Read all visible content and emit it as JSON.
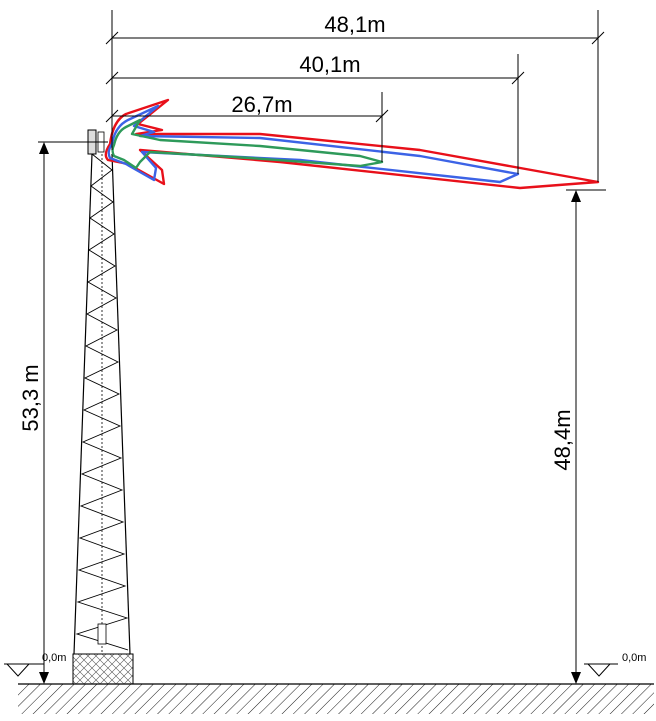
{
  "dimensions": {
    "width_red": "48,1m",
    "width_blue": "40,1m",
    "width_green": "26,7m",
    "tower_height": "53,3 m",
    "beam_end_height": "48,4m",
    "ground_level_left": "0,0m",
    "ground_level_right": "0,0m"
  },
  "beams": [
    {
      "color": "#e8101a"
    },
    {
      "color": "#3c63e6"
    },
    {
      "color": "#2e9a5a"
    }
  ]
}
